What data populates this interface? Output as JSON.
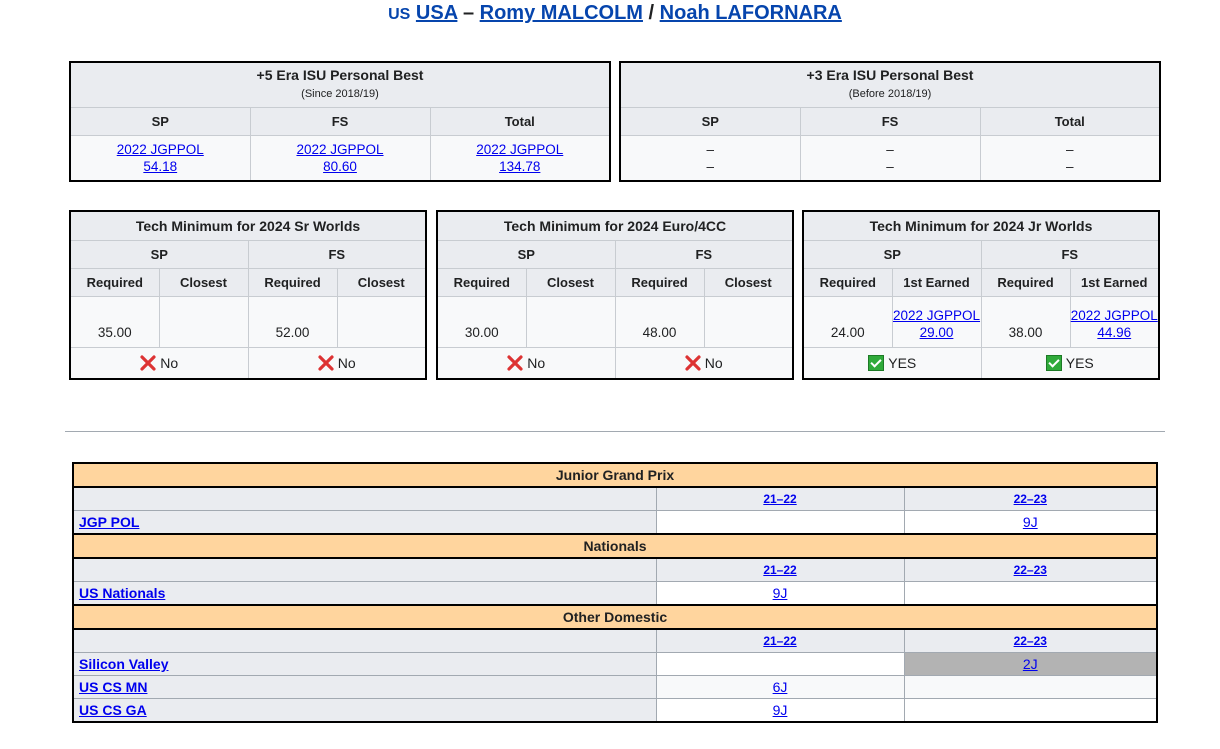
{
  "title": {
    "country_code": "US",
    "country": "USA",
    "dash": "–",
    "skater1": "Romy MALCOLM",
    "slash": "/",
    "skater2": "Noah LAFORNARA"
  },
  "pb5": {
    "title": "+5 Era ISU Personal Best",
    "subtitle": "(Since 2018/19)",
    "cols": [
      "SP",
      "FS",
      "Total"
    ],
    "cells": [
      {
        "event": "2022 JGPPOL",
        "score": "54.18"
      },
      {
        "event": "2022 JGPPOL",
        "score": "80.60"
      },
      {
        "event": "2022 JGPPOL",
        "score": "134.78"
      }
    ]
  },
  "pb3": {
    "title": "+3 Era ISU Personal Best",
    "subtitle": "(Before 2018/19)",
    "cols": [
      "SP",
      "FS",
      "Total"
    ],
    "dash": "–"
  },
  "tech": [
    {
      "title": "Tech Minimum for 2024 Sr Worlds",
      "seg": [
        "SP",
        "FS"
      ],
      "sub": [
        "Required",
        "Closest",
        "Required",
        "Closest"
      ],
      "sp_required": "35.00",
      "fs_required": "52.00",
      "sp_result": "No",
      "fs_result": "No"
    },
    {
      "title": "Tech Minimum for 2024 Euro/4CC",
      "seg": [
        "SP",
        "FS"
      ],
      "sub": [
        "Required",
        "Closest",
        "Required",
        "Closest"
      ],
      "sp_required": "30.00",
      "fs_required": "48.00",
      "sp_result": "No",
      "fs_result": "No"
    },
    {
      "title": "Tech Minimum for 2024 Jr Worlds",
      "seg": [
        "SP",
        "FS"
      ],
      "sub": [
        "Required",
        "1st Earned",
        "Required",
        "1st Earned"
      ],
      "sp_required": "24.00",
      "fs_required": "38.00",
      "sp_earned_event": "2022 JGPPOL",
      "sp_earned_score": "29.00",
      "fs_earned_event": "2022 JGPPOL",
      "fs_earned_score": "44.96",
      "sp_result": "YES",
      "fs_result": "YES"
    }
  ],
  "competitions": {
    "years": [
      "21–22",
      "22–23"
    ],
    "sections": [
      {
        "name": "Junior Grand Prix",
        "events": [
          {
            "name": "JGP POL",
            "y1": "",
            "y2": "9J"
          }
        ]
      },
      {
        "name": "Nationals",
        "events": [
          {
            "name": "US Nationals",
            "y1": "9J",
            "y2": ""
          }
        ]
      },
      {
        "name": "Other Domestic",
        "events": [
          {
            "name": "Silicon Valley",
            "y1": "",
            "y2": "2J"
          },
          {
            "name": "US CS MN",
            "y1": "6J",
            "y2": ""
          },
          {
            "name": "US CS GA",
            "y1": "9J",
            "y2": ""
          }
        ]
      }
    ]
  },
  "colors": {
    "section_bg": "#ffd59e",
    "header_bg": "#eaecf0",
    "link": "#0000ee",
    "yes": "#2faa3a",
    "no": "#d33"
  }
}
